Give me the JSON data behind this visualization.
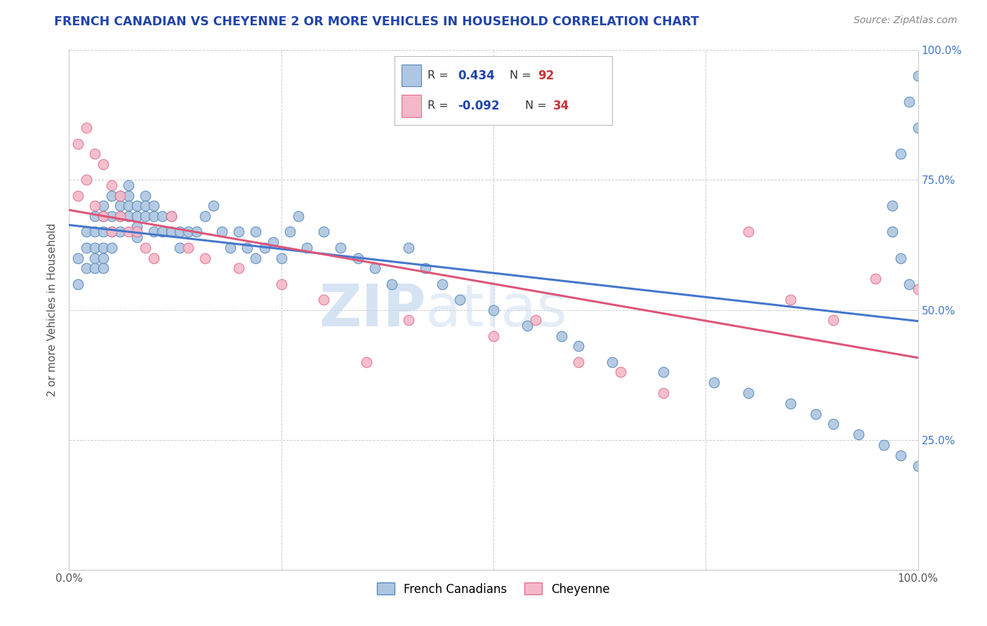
{
  "title": "FRENCH CANADIAN VS CHEYENNE 2 OR MORE VEHICLES IN HOUSEHOLD CORRELATION CHART",
  "source_text": "Source: ZipAtlas.com",
  "ylabel": "2 or more Vehicles in Household",
  "xlim": [
    0,
    100
  ],
  "ylim": [
    0,
    100
  ],
  "xtick_vals": [
    0,
    25,
    50,
    75,
    100
  ],
  "xtick_labels": [
    "0.0%",
    "",
    "",
    "",
    "100.0%"
  ],
  "ytick_vals": [
    0,
    25,
    50,
    75,
    100
  ],
  "right_ytick_labels": [
    "",
    "25.0%",
    "50.0%",
    "75.0%",
    "100.0%"
  ],
  "blue_color": "#aec6e0",
  "blue_edge_color": "#5588bb",
  "pink_color": "#f5b8c8",
  "pink_edge_color": "#e07090",
  "trend_blue": "#4477cc",
  "trend_pink": "#dd5577",
  "legend_r_blue": "0.434",
  "legend_n_blue": "92",
  "legend_r_pink": "-0.092",
  "legend_n_pink": "34",
  "legend_label_blue": "French Canadians",
  "legend_label_pink": "Cheyenne",
  "r_color": "#2244aa",
  "n_color": "#cc3333",
  "watermark_zip": "ZIP",
  "watermark_atlas": "atlas",
  "title_color": "#2244aa",
  "source_color": "#888888",
  "background_color": "#ffffff",
  "grid_color": "#cccccc",
  "blue_x": [
    1,
    1,
    2,
    2,
    2,
    3,
    3,
    3,
    3,
    3,
    4,
    4,
    4,
    4,
    4,
    4,
    5,
    5,
    5,
    5,
    6,
    6,
    6,
    6,
    7,
    7,
    7,
    7,
    8,
    8,
    8,
    8,
    9,
    9,
    9,
    10,
    10,
    10,
    11,
    11,
    12,
    12,
    13,
    13,
    14,
    15,
    16,
    17,
    18,
    19,
    20,
    21,
    22,
    22,
    23,
    24,
    25,
    26,
    27,
    28,
    30,
    32,
    34,
    36,
    38,
    40,
    42,
    44,
    46,
    50,
    54,
    58,
    60,
    64,
    70,
    76,
    80,
    85,
    88,
    90,
    93,
    96,
    98,
    100,
    99,
    98,
    97,
    97,
    98,
    100,
    99,
    100
  ],
  "blue_y": [
    60,
    55,
    62,
    58,
    65,
    68,
    65,
    62,
    60,
    58,
    70,
    68,
    65,
    62,
    60,
    58,
    72,
    68,
    65,
    62,
    72,
    70,
    68,
    65,
    74,
    72,
    70,
    68,
    70,
    68,
    66,
    64,
    72,
    70,
    68,
    70,
    68,
    65,
    68,
    65,
    68,
    65,
    65,
    62,
    65,
    65,
    68,
    70,
    65,
    62,
    65,
    62,
    60,
    65,
    62,
    63,
    60,
    65,
    68,
    62,
    65,
    62,
    60,
    58,
    55,
    62,
    58,
    55,
    52,
    50,
    47,
    45,
    43,
    40,
    38,
    36,
    34,
    32,
    30,
    28,
    26,
    24,
    22,
    20,
    55,
    60,
    65,
    70,
    80,
    85,
    90,
    95
  ],
  "pink_x": [
    1,
    1,
    2,
    2,
    3,
    3,
    4,
    4,
    5,
    5,
    6,
    6,
    7,
    8,
    9,
    10,
    12,
    14,
    16,
    20,
    25,
    30,
    35,
    40,
    50,
    55,
    60,
    65,
    70,
    80,
    85,
    90,
    95,
    100
  ],
  "pink_y": [
    82,
    72,
    85,
    75,
    80,
    70,
    78,
    68,
    74,
    65,
    72,
    68,
    65,
    65,
    62,
    60,
    68,
    62,
    60,
    58,
    55,
    52,
    40,
    48,
    45,
    48,
    40,
    38,
    34,
    65,
    52,
    48,
    56,
    54
  ]
}
